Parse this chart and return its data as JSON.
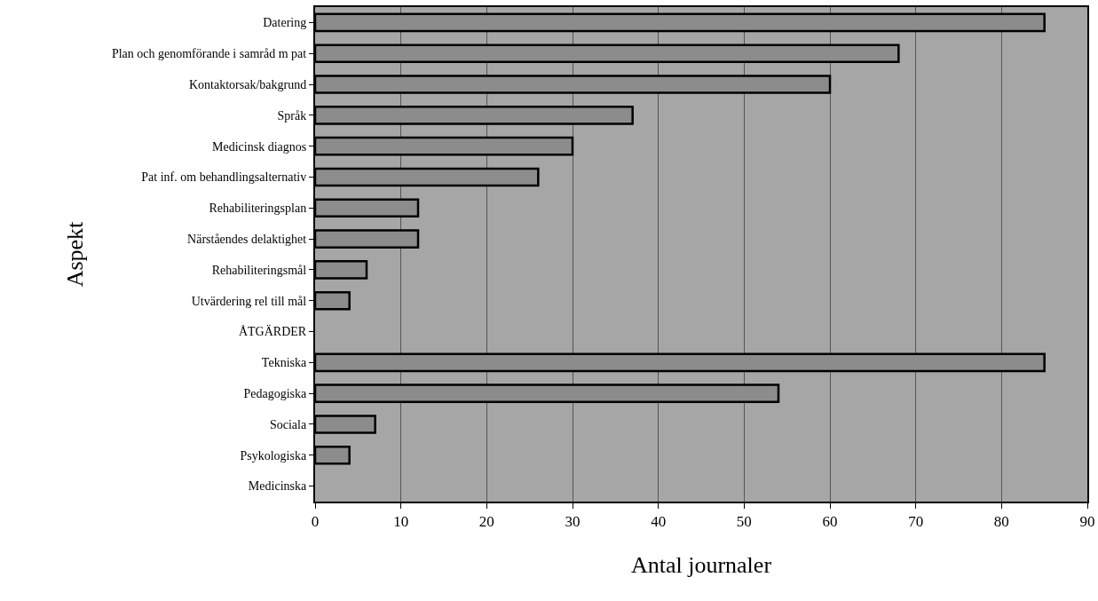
{
  "chart_data": {
    "type": "bar",
    "orientation": "horizontal",
    "xlabel": "Antal journaler",
    "ylabel": "Aspekt",
    "categories": [
      "Datering",
      "Plan och genomförande i samråd m pat",
      "Kontaktorsak/bakgrund",
      "Språk",
      "Medicinsk diagnos",
      "Pat inf. om behandlingsalternativ",
      "Rehabiliteringsplan",
      "Närståendes delaktighet",
      "Rehabiliteringsmål",
      "Utvärdering rel till mål",
      "ÅTGÄRDER",
      "Tekniska",
      "Pedagogiska",
      "Sociala",
      "Psykologiska",
      "Medicinska"
    ],
    "values": [
      85,
      68,
      60,
      37,
      30,
      26,
      12,
      12,
      6,
      4,
      null,
      85,
      54,
      7,
      4,
      null
    ],
    "color": "#8c8c8c",
    "xlim": [
      0,
      90
    ],
    "xticks": [
      0,
      10,
      20,
      30,
      40,
      50,
      60,
      70,
      80,
      90
    ],
    "grid": "x"
  }
}
